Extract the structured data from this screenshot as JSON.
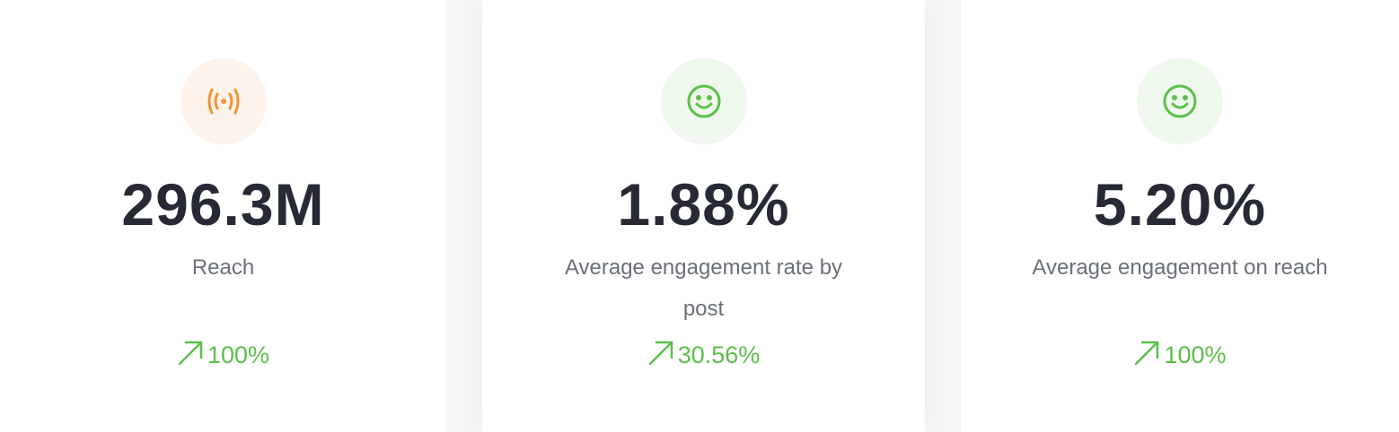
{
  "cards": [
    {
      "value": "296.3M",
      "label": "Reach",
      "change": "100%"
    },
    {
      "value": "1.88%",
      "label": "Average engagement rate by post",
      "change": "30.56%"
    },
    {
      "value": "5.20%",
      "label": "Average engagement on reach",
      "change": "100%"
    }
  ]
}
